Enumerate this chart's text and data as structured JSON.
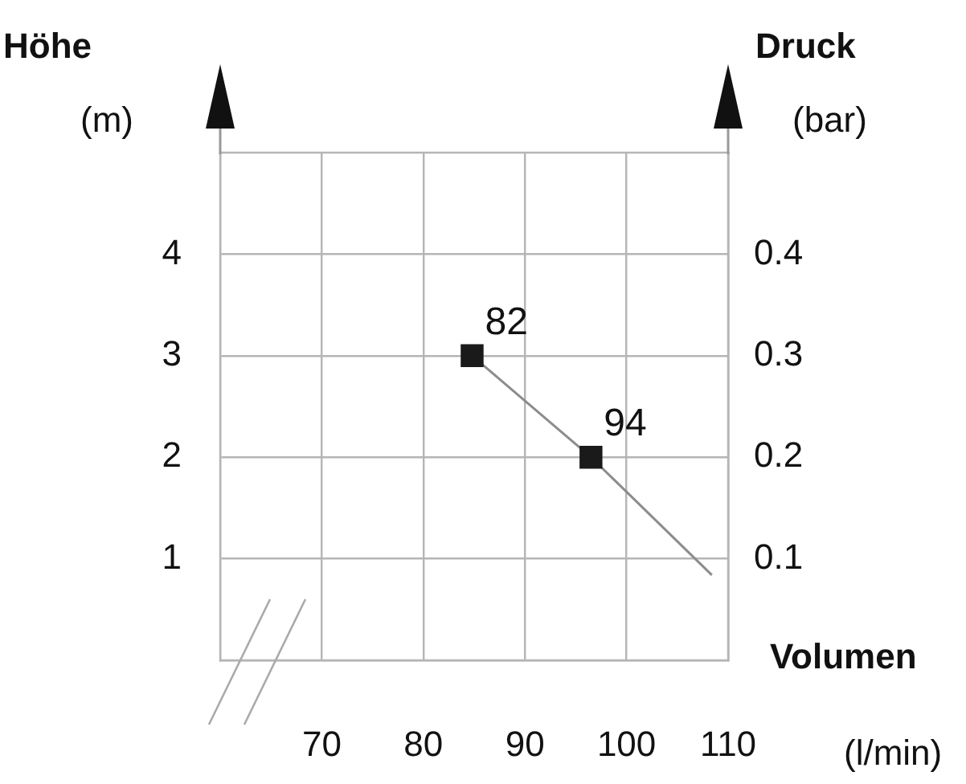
{
  "chart_data": {
    "type": "line",
    "xlabel": "Volumen (l/min)",
    "ylabel": "Höhe (m)",
    "y2label": "Druck (bar)",
    "xlim": [
      60,
      110
    ],
    "xticks": [
      70,
      80,
      90,
      100,
      110
    ],
    "ylim": [
      0,
      5
    ],
    "yticks": [
      1,
      2,
      3,
      4
    ],
    "y2lim": [
      0,
      0.5
    ],
    "y2ticks": [
      0.1,
      0.2,
      0.3,
      0.4
    ],
    "grid": true,
    "legend": false,
    "series": [
      {
        "color": "#8c8c8c",
        "marker": "none",
        "x": [
          84.8,
          96.5,
          108.4
        ],
        "values": [
          3,
          2,
          0.84
        ]
      },
      {
        "type": "scatter",
        "color": "#1a1a1a",
        "marker": "square",
        "x": [
          84.8,
          96.5
        ],
        "values": [
          3,
          2
        ]
      }
    ],
    "annotations": [
      {
        "text": "82",
        "x": 84.8,
        "y": 3
      },
      {
        "text": "94",
        "x": 96.5,
        "y": 2
      }
    ]
  }
}
